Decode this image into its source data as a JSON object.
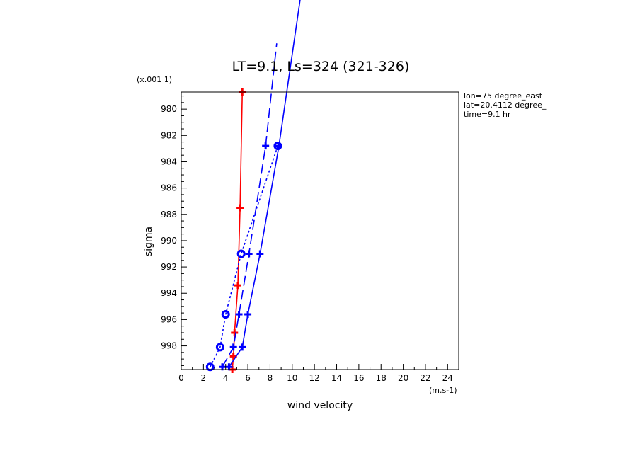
{
  "chart_data": {
    "type": "line",
    "title": "LT=9.1, Ls=324 (321-326)",
    "xlabel": "wind velocity",
    "ylabel": "sigma",
    "x_unit_label": "(m.s-1)",
    "y_unit_label": "(x.001 1)",
    "xlim": [
      0,
      25
    ],
    "ylim": [
      999.8,
      978.7
    ],
    "x_ticks": [
      "0",
      "2",
      "4",
      "6",
      "8",
      "10",
      "12",
      "14",
      "16",
      "18",
      "20",
      "22",
      "24"
    ],
    "y_ticks": [
      "980",
      "982",
      "984",
      "986",
      "988",
      "990",
      "992",
      "994",
      "996",
      "998"
    ],
    "info": [
      "lon=75 degree_east",
      "lat=20.4112 degree_",
      "time=9.1 hr"
    ],
    "colors": {
      "red": "#ff0000",
      "blue": "#0000ff"
    },
    "series": [
      {
        "color": "#ff0000",
        "dash": "solid",
        "marker": "plus",
        "points": [
          [
            4.6,
            999.8
          ],
          [
            4.7,
            998.8
          ],
          [
            4.8,
            997.0
          ],
          [
            5.1,
            993.4
          ],
          [
            5.3,
            987.5
          ],
          [
            5.5,
            978.7
          ]
        ]
      },
      {
        "color": "#0000ff",
        "dash": "solid",
        "marker": "plus",
        "points": [
          [
            4.3,
            999.6
          ],
          [
            5.5,
            998.1
          ],
          [
            6.0,
            995.6
          ],
          [
            7.1,
            991.0
          ],
          [
            8.8,
            982.8
          ],
          [
            11.0,
            970.0
          ]
        ]
      },
      {
        "color": "#0000ff",
        "dash": "dashed",
        "marker": "plus",
        "points": [
          [
            3.7,
            999.6
          ],
          [
            4.7,
            998.1
          ],
          [
            5.2,
            995.6
          ],
          [
            6.1,
            991.0
          ],
          [
            7.6,
            982.8
          ],
          [
            8.6,
            975.0
          ]
        ]
      },
      {
        "color": "#0000ff",
        "dash": "dotted",
        "marker": "circle",
        "points": [
          [
            2.6,
            999.6
          ],
          [
            3.5,
            998.1
          ],
          [
            4.0,
            995.6
          ],
          [
            5.4,
            991.0
          ],
          [
            8.7,
            982.8
          ]
        ]
      }
    ]
  }
}
